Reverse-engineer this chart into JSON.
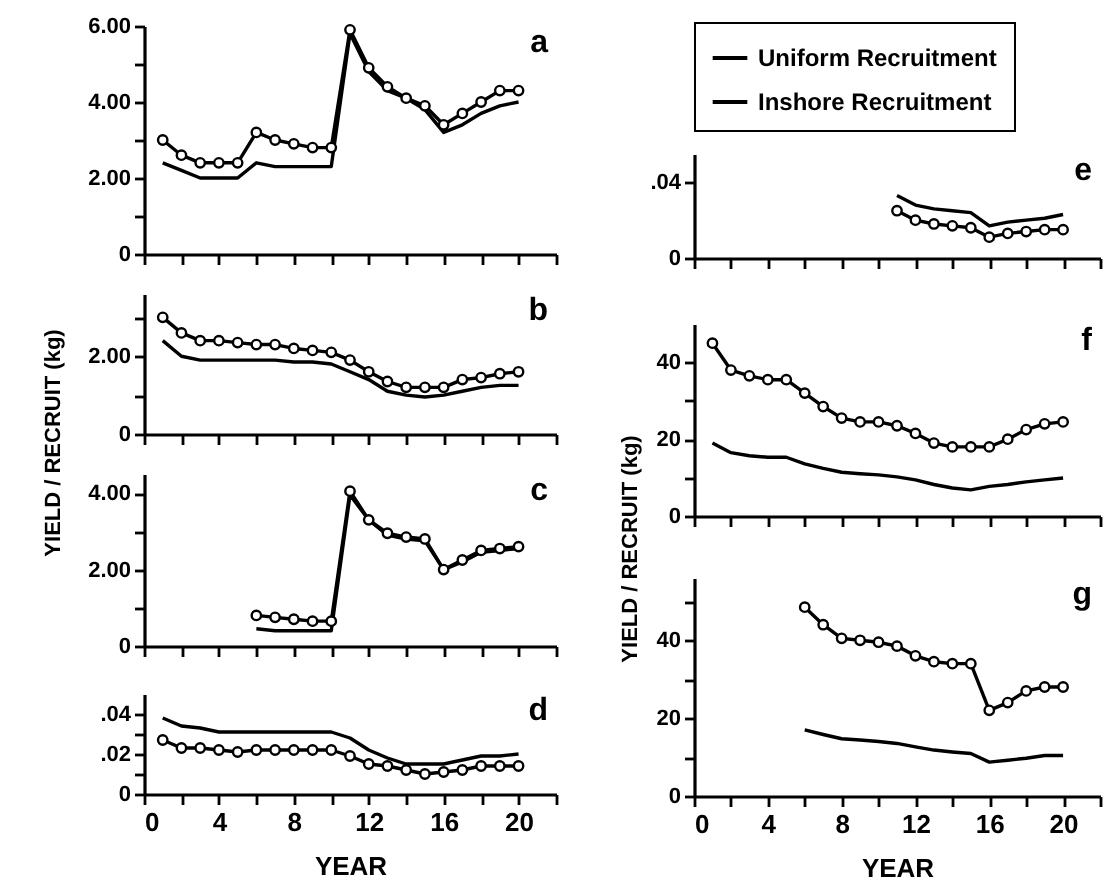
{
  "chart_data": [
    {
      "type": "line",
      "annotations": [
        "a"
      ],
      "x": [
        1,
        2,
        3,
        4,
        5,
        6,
        7,
        8,
        9,
        10,
        11,
        12,
        13,
        14,
        15,
        16,
        17,
        18,
        19,
        20
      ],
      "xlim": [
        0,
        22
      ],
      "xticks": [
        0,
        {
          "value": 2,
          "label": null
        },
        4,
        {
          "value": 6,
          "label": null
        },
        8,
        {
          "value": 10,
          "label": null
        },
        12,
        {
          "value": 14,
          "label": null
        },
        16,
        {
          "value": 18,
          "label": null
        },
        20,
        {
          "value": 22,
          "label": null
        }
      ],
      "ylim": [
        0,
        6
      ],
      "yticks": [
        0,
        {
          "value": 1,
          "label": null
        },
        {
          "value": 2,
          "label": "2.00"
        },
        {
          "value": 3,
          "label": null
        },
        {
          "value": 4,
          "label": "4.00"
        },
        {
          "value": 5,
          "label": null
        },
        {
          "value": 6,
          "label": "6.00"
        }
      ],
      "tick_labels": "y",
      "series": [
        {
          "color": "#000000",
          "values": [
            2.4,
            2.2,
            2.0,
            2.0,
            2.0,
            2.4,
            2.3,
            2.3,
            2.3,
            2.3,
            5.8,
            4.8,
            4.3,
            4.1,
            3.8,
            3.2,
            3.4,
            3.7,
            3.9,
            4.0
          ]
        },
        {
          "color": "#000000",
          "marker": "circle",
          "values": [
            3.0,
            2.6,
            2.4,
            2.4,
            2.4,
            3.2,
            3.0,
            2.9,
            2.8,
            2.8,
            5.9,
            4.9,
            4.4,
            4.1,
            3.9,
            3.4,
            3.7,
            4.0,
            4.3,
            4.3
          ]
        }
      ]
    },
    {
      "type": "line",
      "annotations": [
        "b"
      ],
      "ylabel": "YIELD / RECRUIT (kg)",
      "x": [
        1,
        2,
        3,
        4,
        5,
        6,
        7,
        8,
        9,
        10,
        11,
        12,
        13,
        14,
        15,
        16,
        17,
        18,
        19,
        20
      ],
      "xlim": [
        0,
        22
      ],
      "xticks": [
        0,
        {
          "value": 2,
          "label": null
        },
        4,
        {
          "value": 6,
          "label": null
        },
        8,
        {
          "value": 10,
          "label": null
        },
        12,
        {
          "value": 14,
          "label": null
        },
        16,
        {
          "value": 18,
          "label": null
        },
        20,
        {
          "value": 22,
          "label": null
        }
      ],
      "ylim": [
        0,
        3.6
      ],
      "yticks": [
        0,
        {
          "value": 1,
          "label": null
        },
        {
          "value": 2,
          "label": "2.00"
        },
        {
          "value": 3,
          "label": null
        }
      ],
      "tick_labels": "y",
      "series": [
        {
          "color": "#000000",
          "values": [
            2.4,
            2.0,
            1.9,
            1.9,
            1.9,
            1.9,
            1.9,
            1.85,
            1.85,
            1.8,
            1.6,
            1.4,
            1.1,
            1.0,
            0.95,
            1.0,
            1.1,
            1.2,
            1.25,
            1.25
          ]
        },
        {
          "color": "#000000",
          "marker": "circle",
          "values": [
            3.0,
            2.6,
            2.4,
            2.4,
            2.35,
            2.3,
            2.3,
            2.2,
            2.15,
            2.1,
            1.9,
            1.6,
            1.35,
            1.2,
            1.2,
            1.2,
            1.4,
            1.45,
            1.55,
            1.6
          ]
        }
      ]
    },
    {
      "type": "line",
      "annotations": [
        "c"
      ],
      "x": [
        6,
        7,
        8,
        9,
        10,
        11,
        12,
        13,
        14,
        15,
        16,
        17,
        18,
        19,
        20
      ],
      "xlim": [
        0,
        22
      ],
      "xticks": [
        0,
        {
          "value": 2,
          "label": null
        },
        4,
        {
          "value": 6,
          "label": null
        },
        8,
        {
          "value": 10,
          "label": null
        },
        12,
        {
          "value": 14,
          "label": null
        },
        16,
        {
          "value": 18,
          "label": null
        },
        20,
        {
          "value": 22,
          "label": null
        }
      ],
      "ylim": [
        0,
        4.5
      ],
      "yticks": [
        0,
        {
          "value": 1,
          "label": null
        },
        {
          "value": 2,
          "label": "2.00"
        },
        {
          "value": 3,
          "label": null
        },
        {
          "value": 4,
          "label": "4.00"
        }
      ],
      "tick_labels": "y",
      "series": [
        {
          "color": "#000000",
          "values": [
            0.45,
            0.4,
            0.4,
            0.4,
            0.4,
            3.95,
            3.3,
            2.9,
            2.8,
            2.75,
            2.0,
            2.2,
            2.45,
            2.5,
            2.55
          ]
        },
        {
          "color": "#000000",
          "marker": "circle",
          "values": [
            0.8,
            0.75,
            0.7,
            0.65,
            0.65,
            4.05,
            3.3,
            2.95,
            2.85,
            2.8,
            2.0,
            2.25,
            2.5,
            2.55,
            2.6
          ]
        }
      ]
    },
    {
      "type": "line",
      "annotations": [
        "d"
      ],
      "xlabel": "YEAR",
      "x": [
        1,
        2,
        3,
        4,
        5,
        6,
        7,
        8,
        9,
        10,
        11,
        12,
        13,
        14,
        15,
        16,
        17,
        18,
        19,
        20
      ],
      "xlim": [
        0,
        22
      ],
      "xticks": [
        0,
        {
          "value": 2,
          "label": null
        },
        4,
        {
          "value": 6,
          "label": null
        },
        8,
        {
          "value": 10,
          "label": null
        },
        12,
        {
          "value": 14,
          "label": null
        },
        16,
        {
          "value": 18,
          "label": null
        },
        20,
        {
          "value": 22,
          "label": null
        }
      ],
      "ylim": [
        0,
        0.05
      ],
      "yticks": [
        0,
        {
          "value": 0.01,
          "label": null
        },
        {
          "value": 0.02,
          "label": ".02"
        },
        {
          "value": 0.03,
          "label": null
        },
        {
          "value": 0.04,
          "label": ".04"
        }
      ],
      "series": [
        {
          "color": "#000000",
          "values": [
            0.038,
            0.034,
            0.033,
            0.031,
            0.031,
            0.031,
            0.031,
            0.031,
            0.031,
            0.031,
            0.028,
            0.022,
            0.018,
            0.015,
            0.015,
            0.015,
            0.017,
            0.019,
            0.019,
            0.02
          ]
        },
        {
          "color": "#000000",
          "marker": "circle",
          "values": [
            0.027,
            0.023,
            0.023,
            0.022,
            0.021,
            0.022,
            0.022,
            0.022,
            0.022,
            0.022,
            0.019,
            0.015,
            0.014,
            0.012,
            0.01,
            0.011,
            0.012,
            0.014,
            0.014,
            0.014
          ]
        }
      ]
    },
    {
      "type": "line",
      "annotations": [
        "e"
      ],
      "legend": "top",
      "x": [
        11,
        12,
        13,
        14,
        15,
        16,
        17,
        18,
        19,
        20
      ],
      "xlim": [
        0,
        22
      ],
      "xticks": [
        0,
        {
          "value": 2,
          "label": null
        },
        4,
        {
          "value": 6,
          "label": null
        },
        8,
        {
          "value": 10,
          "label": null
        },
        12,
        {
          "value": 14,
          "label": null
        },
        16,
        {
          "value": 18,
          "label": null
        },
        20,
        {
          "value": 22,
          "label": null
        }
      ],
      "ylim": [
        0,
        0.055
      ],
      "yticks": [
        0,
        {
          "value": 0.04,
          "label": ".04"
        }
      ],
      "tick_labels": "y",
      "series": [
        {
          "name": "Uniform Recruitment",
          "color": "#000000",
          "values": [
            0.033,
            0.028,
            0.026,
            0.025,
            0.024,
            0.017,
            0.019,
            0.02,
            0.021,
            0.023
          ]
        },
        {
          "name": "Inshore Recruitment",
          "color": "#000000",
          "marker": "circle",
          "values": [
            0.025,
            0.02,
            0.018,
            0.017,
            0.016,
            0.011,
            0.013,
            0.014,
            0.015,
            0.015
          ]
        }
      ]
    },
    {
      "type": "line",
      "annotations": [
        "f"
      ],
      "ylabel": "YIELD / RECRUIT (kg)",
      "x": [
        1,
        2,
        3,
        4,
        5,
        6,
        7,
        8,
        9,
        10,
        11,
        12,
        13,
        14,
        15,
        16,
        17,
        18,
        19,
        20
      ],
      "xlim": [
        0,
        22
      ],
      "xticks": [
        0,
        {
          "value": 2,
          "label": null
        },
        4,
        {
          "value": 6,
          "label": null
        },
        8,
        {
          "value": 10,
          "label": null
        },
        12,
        {
          "value": 14,
          "label": null
        },
        16,
        {
          "value": 18,
          "label": null
        },
        20,
        {
          "value": 22,
          "label": null
        }
      ],
      "ylim": [
        0,
        50
      ],
      "yticks": [
        0,
        {
          "value": 10,
          "label": null
        },
        20,
        {
          "value": 30,
          "label": null
        },
        40
      ],
      "tick_labels": "y",
      "series": [
        {
          "color": "#000000",
          "values": [
            19,
            16.5,
            15.7,
            15.3,
            15.3,
            13.6,
            12.4,
            11.4,
            11,
            10.7,
            10.2,
            9.4,
            8.2,
            7.3,
            6.8,
            7.7,
            8.2,
            8.9,
            9.4,
            9.9
          ]
        },
        {
          "color": "#000000",
          "marker": "circle",
          "values": [
            45,
            38,
            36.5,
            35.5,
            35.5,
            32,
            28.5,
            25.5,
            24.5,
            24.5,
            23.5,
            21.5,
            19,
            18,
            18,
            18,
            20,
            22.5,
            24,
            24.5
          ]
        }
      ]
    },
    {
      "type": "line",
      "annotations": [
        "g"
      ],
      "xlabel": "YEAR",
      "x": [
        6,
        7,
        8,
        9,
        10,
        11,
        12,
        13,
        14,
        15,
        16,
        17,
        18,
        19,
        20
      ],
      "xlim": [
        0,
        22
      ],
      "xticks": [
        0,
        {
          "value": 2,
          "label": null
        },
        4,
        {
          "value": 6,
          "label": null
        },
        8,
        {
          "value": 10,
          "label": null
        },
        12,
        {
          "value": 14,
          "label": null
        },
        16,
        {
          "value": 18,
          "label": null
        },
        20,
        {
          "value": 22,
          "label": null
        }
      ],
      "ylim": [
        0,
        56
      ],
      "yticks": [
        0,
        {
          "value": 10,
          "label": null
        },
        20,
        {
          "value": 30,
          "label": null
        },
        40,
        {
          "value": 50,
          "label": null
        }
      ],
      "series": [
        {
          "color": "#000000",
          "values": [
            17,
            15.8,
            14.7,
            14.4,
            14,
            13.5,
            12.6,
            11.8,
            11.3,
            10.9,
            8.7,
            9.2,
            9.7,
            10.4,
            10.4
          ]
        },
        {
          "color": "#000000",
          "marker": "circle",
          "values": [
            48.5,
            44,
            40.5,
            40,
            39.5,
            38.5,
            36,
            34.5,
            34,
            34,
            22,
            24,
            27,
            28,
            28
          ]
        }
      ]
    }
  ]
}
